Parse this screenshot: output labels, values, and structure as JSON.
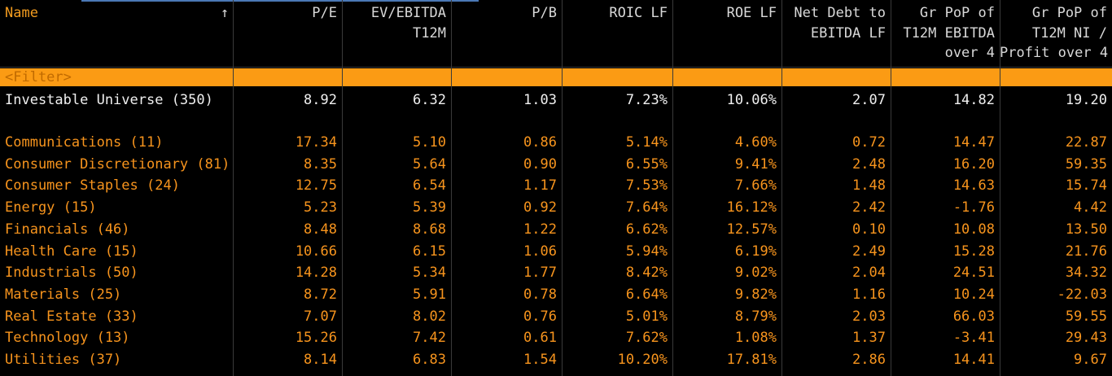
{
  "header": {
    "sort_indicator": "↑",
    "columns": [
      {
        "lines": [
          "Name"
        ]
      },
      {
        "lines": [
          "P/E"
        ]
      },
      {
        "lines": [
          "EV/EBITDA",
          "T12M"
        ]
      },
      {
        "lines": [
          "P/B"
        ]
      },
      {
        "lines": [
          "ROIC LF"
        ]
      },
      {
        "lines": [
          "ROE LF"
        ]
      },
      {
        "lines": [
          "Net Debt to",
          "EBITDA LF"
        ]
      },
      {
        "lines": [
          "Gr PoP of",
          "T12M EBITDA",
          "over 4"
        ]
      },
      {
        "lines": [
          "Gr PoP of",
          "T12M NI /",
          "Profit over 4"
        ]
      }
    ]
  },
  "filter": "<Filter>",
  "table": {
    "summary_row": [
      "Investable Universe (350)",
      "8.92",
      "6.32",
      "1.03",
      "7.23%",
      "10.06%",
      "2.07",
      "14.82",
      "19.20"
    ],
    "rows": [
      [
        "Communications (11)",
        "17.34",
        "5.10",
        "0.86",
        "5.14%",
        "4.60%",
        "0.72",
        "14.47",
        "22.87"
      ],
      [
        "Consumer Discretionary (81)",
        "8.35",
        "5.64",
        "0.90",
        "6.55%",
        "9.41%",
        "2.48",
        "16.20",
        "59.35"
      ],
      [
        "Consumer Staples (24)",
        "12.75",
        "6.54",
        "1.17",
        "7.53%",
        "7.66%",
        "1.48",
        "14.63",
        "15.74"
      ],
      [
        "Energy (15)",
        "5.23",
        "5.39",
        "0.92",
        "7.64%",
        "16.12%",
        "2.42",
        "-1.76",
        "4.42"
      ],
      [
        "Financials (46)",
        "8.48",
        "8.68",
        "1.22",
        "6.62%",
        "12.57%",
        "0.10",
        "10.08",
        "13.50"
      ],
      [
        "Health Care (15)",
        "10.66",
        "6.15",
        "1.06",
        "5.94%",
        "6.19%",
        "2.49",
        "15.28",
        "21.76"
      ],
      [
        "Industrials (50)",
        "14.28",
        "5.34",
        "1.77",
        "8.42%",
        "9.02%",
        "2.04",
        "24.51",
        "34.32"
      ],
      [
        "Materials (25)",
        "8.72",
        "5.91",
        "0.78",
        "6.64%",
        "9.82%",
        "1.16",
        "10.24",
        "-22.03"
      ],
      [
        "Real Estate (33)",
        "7.07",
        "8.02",
        "0.76",
        "5.01%",
        "8.79%",
        "2.03",
        "66.03",
        "59.55"
      ],
      [
        "Technology (13)",
        "15.26",
        "7.42",
        "0.61",
        "7.62%",
        "1.08%",
        "1.37",
        "-3.41",
        "29.43"
      ],
      [
        "Utilities (37)",
        "8.14",
        "6.83",
        "1.54",
        "10.20%",
        "17.81%",
        "2.86",
        "14.41",
        "9.67"
      ]
    ]
  }
}
